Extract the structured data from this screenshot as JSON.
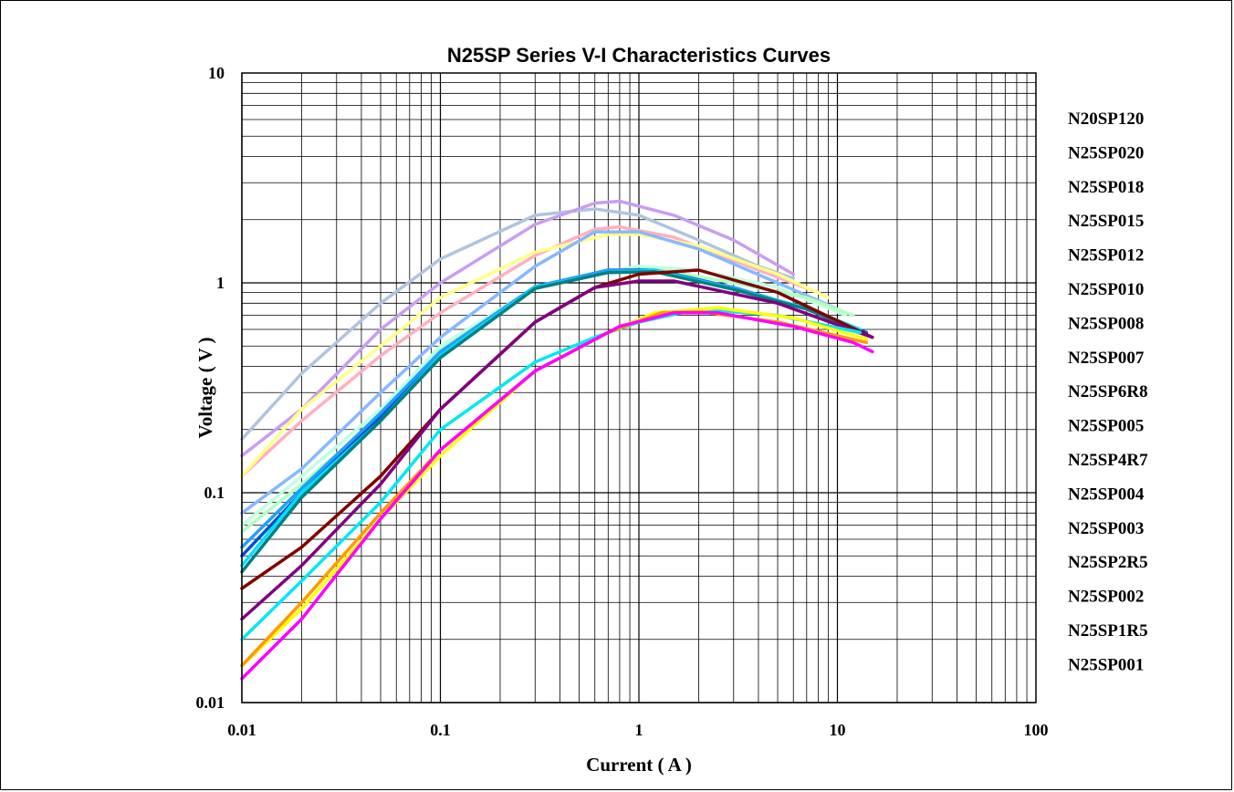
{
  "chart_data": {
    "type": "line",
    "title": "N25SP Series  V-I Characteristics  Curves",
    "xlabel": "Current ( A )",
    "ylabel": "Voltage ( V )",
    "x_scale": "log",
    "y_scale": "log",
    "xlim": [
      0.01,
      100
    ],
    "ylim": [
      0.01,
      10
    ],
    "x_ticks": [
      "0.01",
      "0.1",
      "1",
      "10",
      "100"
    ],
    "y_ticks": [
      "0.01",
      "0.1",
      "1",
      "10"
    ],
    "grid": true,
    "legend_position": "right",
    "series": [
      {
        "name": "N20SP120",
        "color": "#b0c4de",
        "points": [
          [
            0.01,
            0.18
          ],
          [
            0.02,
            0.37
          ],
          [
            0.05,
            0.8
          ],
          [
            0.1,
            1.3
          ],
          [
            0.3,
            2.1
          ],
          [
            0.6,
            2.25
          ],
          [
            1,
            2.1
          ],
          [
            2,
            1.6
          ],
          [
            4,
            1.2
          ],
          [
            6,
            1.05
          ]
        ]
      },
      {
        "name": "N25SP020",
        "color": "#c89ef0",
        "points": [
          [
            0.01,
            0.15
          ],
          [
            0.02,
            0.25
          ],
          [
            0.05,
            0.6
          ],
          [
            0.1,
            1.0
          ],
          [
            0.3,
            1.9
          ],
          [
            0.6,
            2.4
          ],
          [
            0.8,
            2.45
          ],
          [
            1.5,
            2.1
          ],
          [
            3,
            1.6
          ],
          [
            6,
            1.1
          ]
        ]
      },
      {
        "name": "N25SP018",
        "color": "#ffb0c0",
        "points": [
          [
            0.01,
            0.12
          ],
          [
            0.02,
            0.22
          ],
          [
            0.05,
            0.45
          ],
          [
            0.1,
            0.72
          ],
          [
            0.3,
            1.35
          ],
          [
            0.6,
            1.8
          ],
          [
            0.8,
            1.85
          ],
          [
            1.5,
            1.65
          ],
          [
            4,
            1.15
          ],
          [
            8,
            0.9
          ]
        ]
      },
      {
        "name": "N25SP015",
        "color": "#ffff88",
        "points": [
          [
            0.01,
            0.12
          ],
          [
            0.02,
            0.25
          ],
          [
            0.05,
            0.5
          ],
          [
            0.1,
            0.85
          ],
          [
            0.3,
            1.4
          ],
          [
            0.7,
            1.7
          ],
          [
            1,
            1.7
          ],
          [
            2,
            1.5
          ],
          [
            5,
            1.1
          ],
          [
            9,
            0.85
          ]
        ]
      },
      {
        "name": "N25SP012",
        "color": "#88b8ff",
        "points": [
          [
            0.01,
            0.08
          ],
          [
            0.02,
            0.13
          ],
          [
            0.05,
            0.3
          ],
          [
            0.1,
            0.55
          ],
          [
            0.3,
            1.2
          ],
          [
            0.6,
            1.75
          ],
          [
            1,
            1.75
          ],
          [
            2,
            1.45
          ],
          [
            5,
            1.0
          ],
          [
            10,
            0.75
          ]
        ]
      },
      {
        "name": "N25SP010",
        "color": "#c0ffe0",
        "points": [
          [
            0.01,
            0.07
          ],
          [
            0.02,
            0.12
          ],
          [
            0.05,
            0.25
          ],
          [
            0.1,
            0.5
          ],
          [
            0.3,
            0.95
          ],
          [
            0.6,
            1.1
          ],
          [
            1,
            1.2
          ],
          [
            2,
            1.15
          ],
          [
            5,
            0.95
          ],
          [
            11,
            0.7
          ]
        ]
      },
      {
        "name": "N25SP008",
        "color": "#b0ffc0",
        "points": [
          [
            0.01,
            0.065
          ],
          [
            0.02,
            0.11
          ],
          [
            0.05,
            0.23
          ],
          [
            0.1,
            0.48
          ],
          [
            0.3,
            0.95
          ],
          [
            0.7,
            1.15
          ],
          [
            1.3,
            1.15
          ],
          [
            3,
            1.0
          ],
          [
            7,
            0.85
          ],
          [
            12,
            0.7
          ]
        ]
      },
      {
        "name": "N25SP007",
        "color": "#0050d0",
        "points": [
          [
            0.01,
            0.05
          ],
          [
            0.02,
            0.1
          ],
          [
            0.05,
            0.23
          ],
          [
            0.1,
            0.46
          ],
          [
            0.3,
            0.95
          ],
          [
            0.7,
            1.15
          ],
          [
            1.2,
            1.15
          ],
          [
            3,
            0.95
          ],
          [
            7,
            0.75
          ],
          [
            14,
            0.58
          ]
        ]
      },
      {
        "name": "N25SP6R8",
        "color": "#20a0ff",
        "points": [
          [
            0.01,
            0.055
          ],
          [
            0.02,
            0.105
          ],
          [
            0.05,
            0.24
          ],
          [
            0.1,
            0.47
          ],
          [
            0.3,
            0.96
          ],
          [
            0.7,
            1.15
          ],
          [
            1.2,
            1.13
          ],
          [
            3,
            0.95
          ],
          [
            7,
            0.75
          ],
          [
            14,
            0.57
          ]
        ]
      },
      {
        "name": "N25SP005",
        "color": "#00e0ff",
        "points": [
          [
            0.01,
            0.045
          ],
          [
            0.02,
            0.1
          ],
          [
            0.05,
            0.22
          ],
          [
            0.1,
            0.45
          ],
          [
            0.3,
            0.95
          ],
          [
            0.7,
            1.12
          ],
          [
            1.2,
            1.15
          ],
          [
            3,
            0.93
          ],
          [
            7,
            0.76
          ],
          [
            13,
            0.6
          ]
        ]
      },
      {
        "name": "N25SP4R7",
        "color": "#008080",
        "points": [
          [
            0.01,
            0.042
          ],
          [
            0.02,
            0.095
          ],
          [
            0.05,
            0.22
          ],
          [
            0.1,
            0.44
          ],
          [
            0.3,
            0.94
          ],
          [
            0.7,
            1.12
          ],
          [
            1.2,
            1.13
          ],
          [
            3,
            0.93
          ],
          [
            7,
            0.75
          ],
          [
            14,
            0.57
          ]
        ]
      },
      {
        "name": "N25SP004",
        "color": "#800000",
        "points": [
          [
            0.01,
            0.035
          ],
          [
            0.02,
            0.055
          ],
          [
            0.05,
            0.12
          ],
          [
            0.1,
            0.25
          ],
          [
            0.3,
            0.65
          ],
          [
            0.6,
            0.95
          ],
          [
            1,
            1.1
          ],
          [
            2,
            1.15
          ],
          [
            5,
            0.9
          ],
          [
            15,
            0.55
          ]
        ]
      },
      {
        "name": "N25SP003",
        "color": "#800080",
        "points": [
          [
            0.01,
            0.025
          ],
          [
            0.02,
            0.045
          ],
          [
            0.05,
            0.11
          ],
          [
            0.1,
            0.25
          ],
          [
            0.3,
            0.65
          ],
          [
            0.6,
            0.95
          ],
          [
            1,
            1.02
          ],
          [
            1.5,
            1.02
          ],
          [
            5,
            0.8
          ],
          [
            15,
            0.55
          ]
        ]
      },
      {
        "name": "N25SP2R5",
        "color": "#00e8f0",
        "points": [
          [
            0.01,
            0.02
          ],
          [
            0.02,
            0.038
          ],
          [
            0.05,
            0.09
          ],
          [
            0.1,
            0.2
          ],
          [
            0.3,
            0.42
          ],
          [
            0.6,
            0.55
          ],
          [
            1,
            0.65
          ],
          [
            2,
            0.75
          ],
          [
            5,
            0.7
          ],
          [
            13,
            0.58
          ]
        ]
      },
      {
        "name": "N25SP002",
        "color": "#ffff00",
        "points": [
          [
            0.01,
            0.015
          ],
          [
            0.02,
            0.028
          ],
          [
            0.05,
            0.075
          ],
          [
            0.1,
            0.15
          ],
          [
            0.3,
            0.38
          ],
          [
            0.7,
            0.58
          ],
          [
            1.2,
            0.72
          ],
          [
            2.5,
            0.76
          ],
          [
            6,
            0.68
          ],
          [
            14,
            0.54
          ]
        ]
      },
      {
        "name": "N25SP1R5",
        "color": "#ff9900",
        "points": [
          [
            0.01,
            0.015
          ],
          [
            0.02,
            0.03
          ],
          [
            0.05,
            0.08
          ],
          [
            0.1,
            0.16
          ],
          [
            0.3,
            0.38
          ],
          [
            0.7,
            0.58
          ],
          [
            1.3,
            0.72
          ],
          [
            2,
            0.73
          ],
          [
            5,
            0.65
          ],
          [
            14,
            0.52
          ]
        ]
      },
      {
        "name": "N25SP001",
        "color": "#ff00ff",
        "points": [
          [
            0.01,
            0.013
          ],
          [
            0.02,
            0.025
          ],
          [
            0.05,
            0.075
          ],
          [
            0.1,
            0.16
          ],
          [
            0.3,
            0.38
          ],
          [
            0.8,
            0.62
          ],
          [
            1.5,
            0.72
          ],
          [
            2.5,
            0.72
          ],
          [
            6,
            0.62
          ],
          [
            12,
            0.52
          ],
          [
            15,
            0.47
          ]
        ]
      }
    ]
  }
}
